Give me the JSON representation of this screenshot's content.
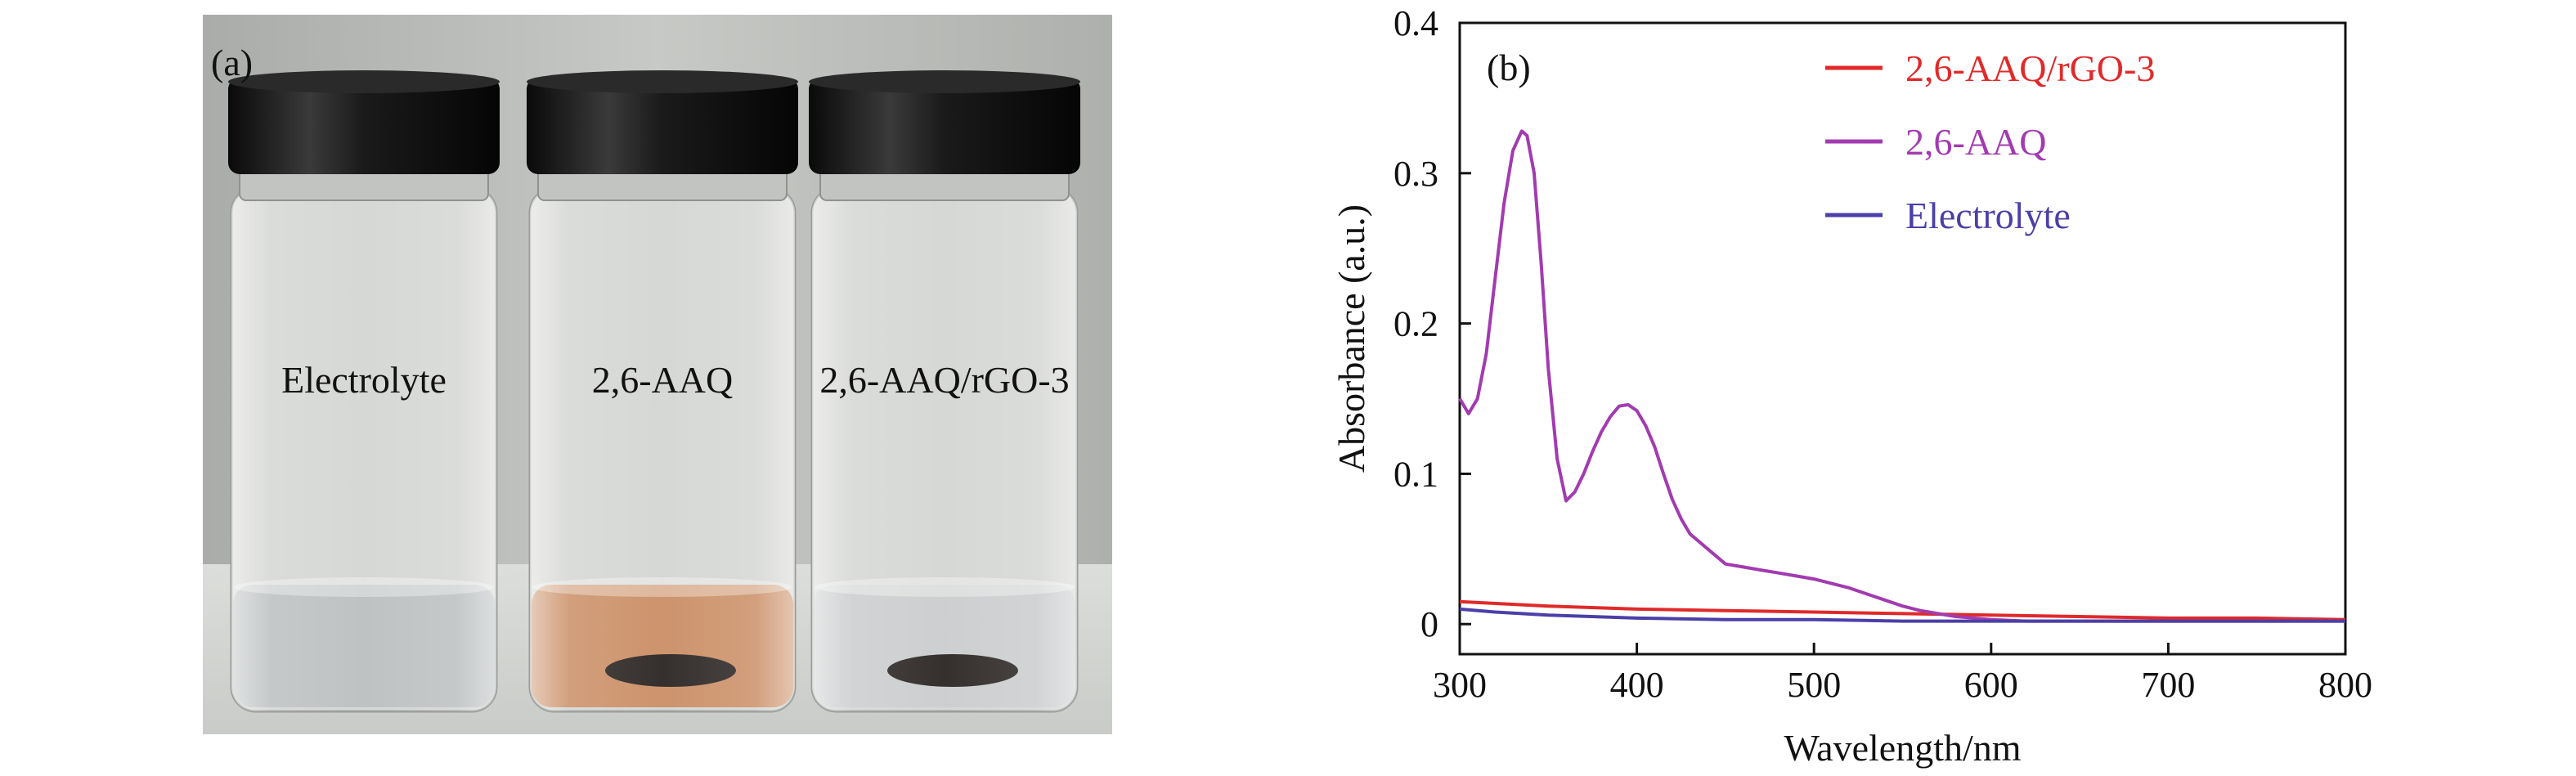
{
  "panel_a": {
    "label": "(a)",
    "vials": [
      {
        "label": "Electrolyte",
        "liquid": "#b8bcbe",
        "sediment": false
      },
      {
        "label": "2,6-AAQ",
        "liquid": "#c98659",
        "sediment": true
      },
      {
        "label": "2,6-AAQ/rGO-3",
        "liquid": "#c9cbcc",
        "sediment": true
      }
    ]
  },
  "chart_data": {
    "type": "line",
    "panel_label": "(b)",
    "xlabel": "Wavelength/nm",
    "ylabel": "Absorbance (a.u.)",
    "xlim": [
      300,
      800
    ],
    "ylim": [
      -0.02,
      0.4
    ],
    "xticks": [
      300,
      400,
      500,
      600,
      700,
      800
    ],
    "yticks": [
      0,
      0.1,
      0.2,
      0.3,
      0.4
    ],
    "legend_position": "top-right",
    "series": [
      {
        "name": "2,6-AAQ/rGO-3",
        "color": "#e02a2a",
        "x": [
          300,
          350,
          400,
          450,
          500,
          550,
          600,
          650,
          700,
          750,
          800
        ],
        "y": [
          0.015,
          0.012,
          0.01,
          0.009,
          0.008,
          0.007,
          0.006,
          0.005,
          0.004,
          0.004,
          0.003
        ]
      },
      {
        "name": "2,6-AAQ",
        "color": "#a23bb0",
        "x": [
          300,
          305,
          310,
          315,
          320,
          325,
          330,
          335,
          338,
          342,
          346,
          350,
          355,
          360,
          365,
          370,
          375,
          380,
          385,
          390,
          395,
          400,
          405,
          410,
          415,
          420,
          425,
          430,
          440,
          450,
          460,
          470,
          480,
          490,
          500,
          510,
          520,
          530,
          540,
          550,
          560,
          570,
          580,
          600,
          620,
          650,
          700,
          750,
          800
        ],
        "y": [
          0.15,
          0.14,
          0.15,
          0.18,
          0.23,
          0.28,
          0.315,
          0.328,
          0.325,
          0.3,
          0.24,
          0.17,
          0.11,
          0.082,
          0.088,
          0.1,
          0.115,
          0.128,
          0.138,
          0.145,
          0.146,
          0.142,
          0.132,
          0.118,
          0.1,
          0.083,
          0.07,
          0.06,
          0.05,
          0.04,
          0.038,
          0.036,
          0.034,
          0.032,
          0.03,
          0.027,
          0.024,
          0.02,
          0.016,
          0.012,
          0.009,
          0.007,
          0.005,
          0.003,
          0.002,
          0.002,
          0.002,
          0.002,
          0.002
        ]
      },
      {
        "name": "Electrolyte",
        "color": "#4b3fa8",
        "x": [
          300,
          320,
          350,
          400,
          450,
          500,
          550,
          600,
          650,
          700,
          750,
          800
        ],
        "y": [
          0.01,
          0.008,
          0.006,
          0.004,
          0.003,
          0.003,
          0.002,
          0.002,
          0.002,
          0.002,
          0.002,
          0.002
        ]
      }
    ]
  }
}
